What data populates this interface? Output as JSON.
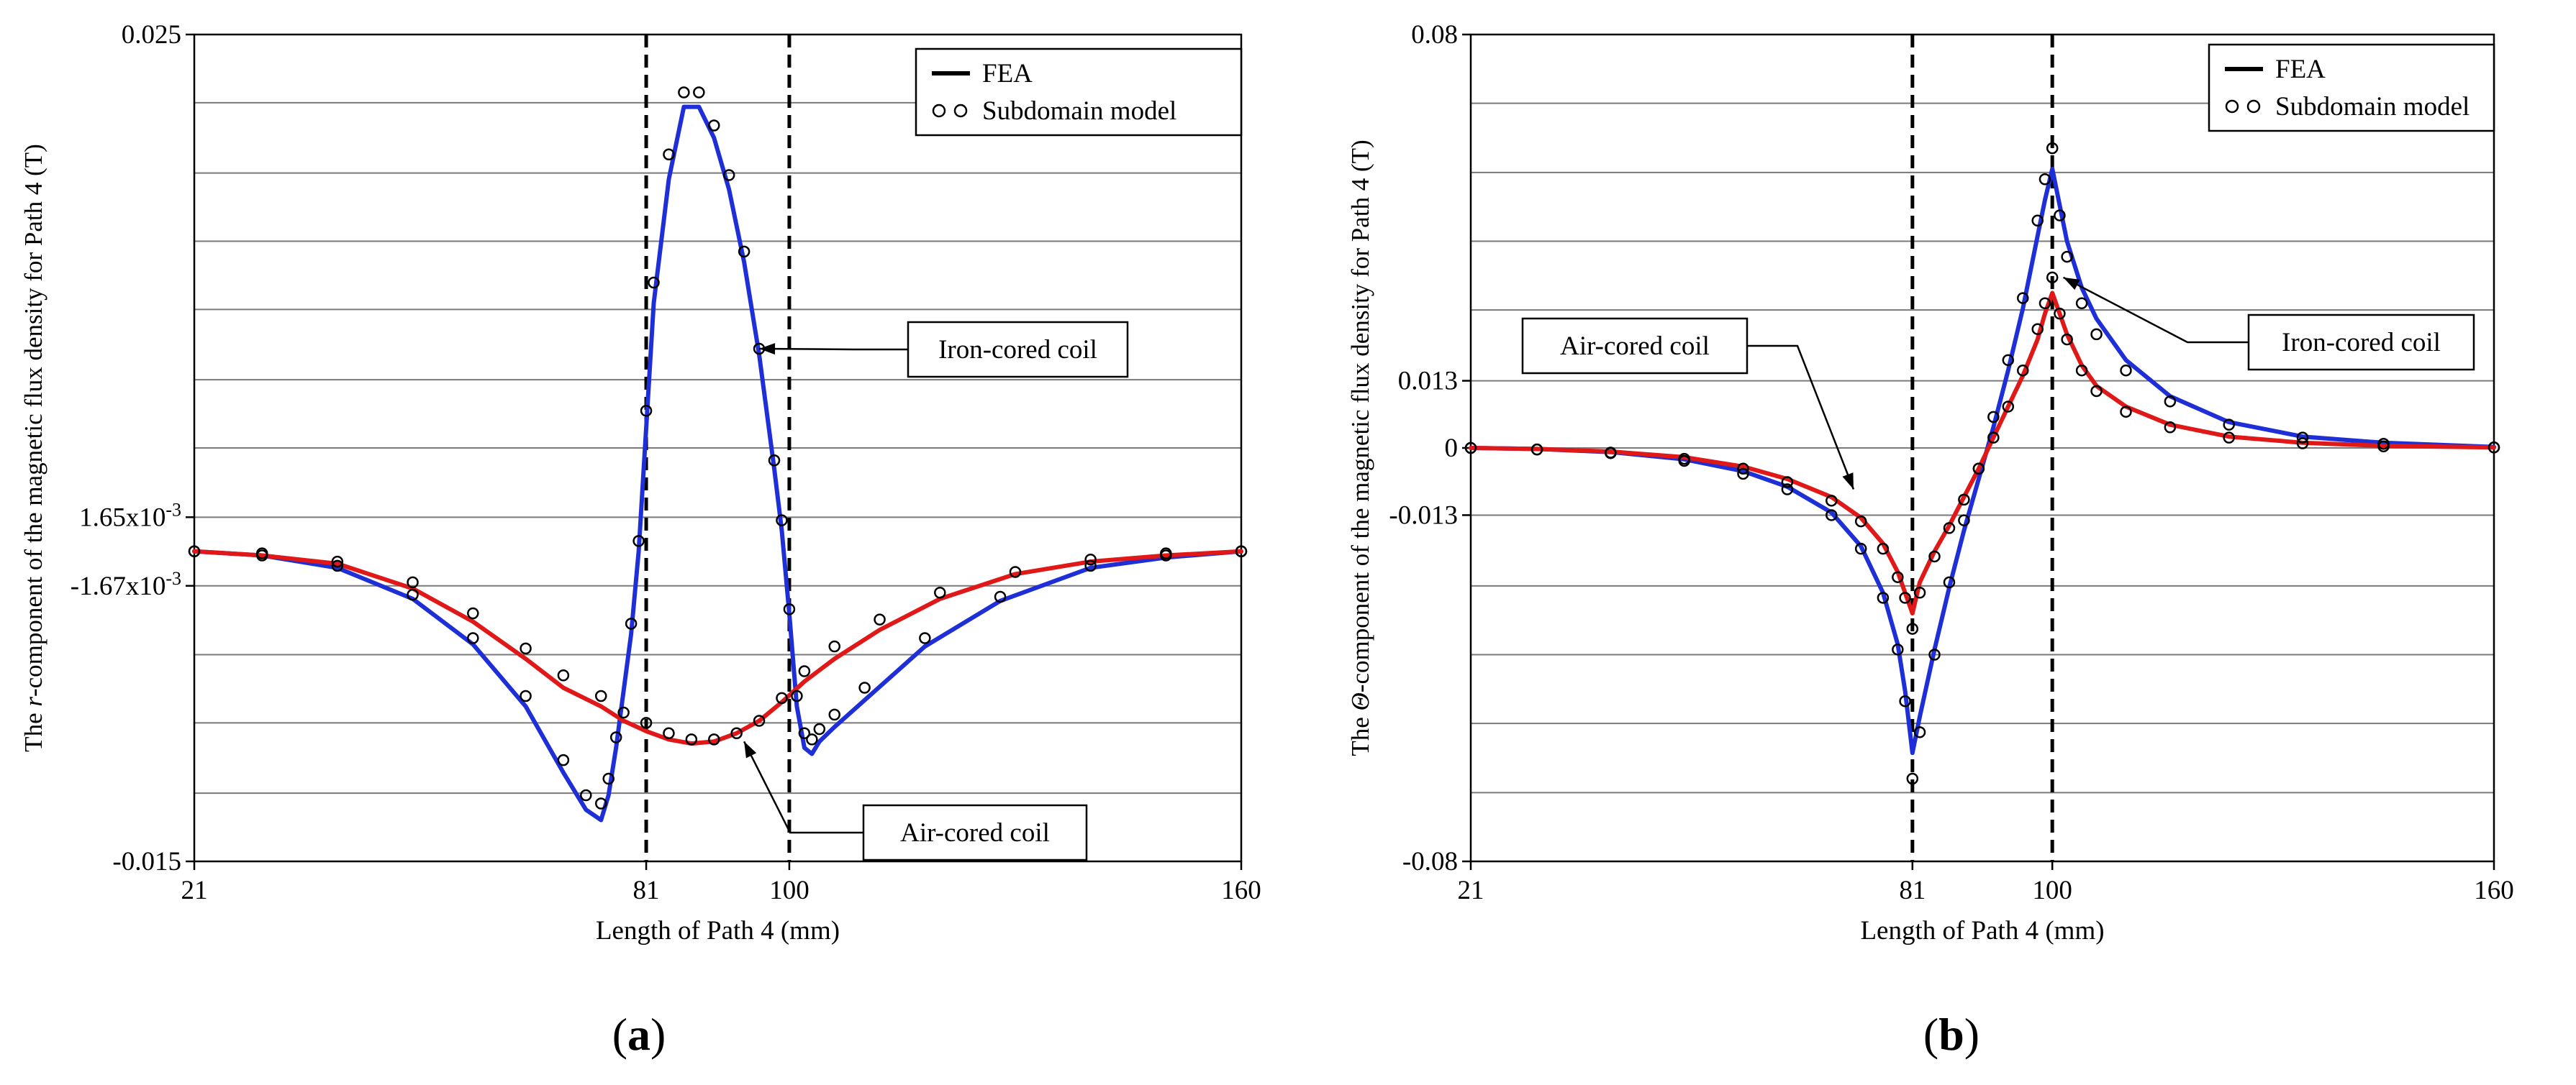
{
  "chart_data": [
    {
      "id": "a",
      "type": "line",
      "panel_label": "a",
      "xlabel": "Length of Path 4 (mm)",
      "ylabel_parts": [
        "The ",
        "r",
        "-component of the magnetic flux density for Path 4 (T)"
      ],
      "xlim": [
        21,
        160
      ],
      "ylim": [
        -0.015,
        0.025
      ],
      "xticks": [
        {
          "value": 21,
          "label": "21"
        },
        {
          "value": 81,
          "label": "81"
        },
        {
          "value": 100,
          "label": "100"
        },
        {
          "value": 160,
          "label": "160"
        }
      ],
      "yticks": [
        {
          "value": 0.025,
          "label": "0.025",
          "sup": ""
        },
        {
          "value": 0.00165,
          "label": "1.65x10",
          "sup": "-3"
        },
        {
          "value": -0.00167,
          "label": "-1.67x10",
          "sup": "-3"
        },
        {
          "value": -0.015,
          "label": "-0.015",
          "sup": ""
        }
      ],
      "gridlines_y": [
        0.0217,
        0.0183,
        0.015,
        0.0117,
        0.0083,
        0.005,
        -0.005,
        -0.0083,
        -0.0117
      ],
      "vlines": [
        81,
        100
      ],
      "legend": {
        "position": "top-right",
        "items": [
          {
            "label": "FEA",
            "style": "line"
          },
          {
            "label": "Subdomain model",
            "style": "circles"
          }
        ]
      },
      "annotations": [
        {
          "text": "Iron-cored coil",
          "target_x": 96,
          "target_y": 0.0098
        },
        {
          "text": "Air-cored coil",
          "target_x": 94,
          "target_y": -0.0092
        }
      ],
      "series": [
        {
          "name": "Iron-cored coil (FEA)",
          "color": "#1f2fd8",
          "x": [
            21,
            30,
            40,
            50,
            58,
            65,
            70,
            73,
            75,
            76,
            77,
            79,
            80,
            81,
            82,
            84,
            86,
            88,
            90,
            92,
            94,
            96,
            98,
            99,
            100,
            101,
            102,
            103,
            104,
            106,
            110,
            118,
            128,
            140,
            150,
            160
          ],
          "y": [
            0,
            -0.0002,
            -0.0008,
            -0.0023,
            -0.0045,
            -0.0075,
            -0.0107,
            -0.0125,
            -0.013,
            -0.0118,
            -0.0095,
            -0.004,
            0,
            0.006,
            0.012,
            0.018,
            0.0215,
            0.0215,
            0.02,
            0.0175,
            0.014,
            0.0095,
            0.004,
            0.001,
            -0.003,
            -0.0075,
            -0.0095,
            -0.0098,
            -0.0092,
            -0.0085,
            -0.0072,
            -0.0046,
            -0.0024,
            -0.0008,
            -0.0003,
            0
          ]
        },
        {
          "name": "Air-cored coil (FEA)",
          "color": "#e01818",
          "x": [
            21,
            30,
            40,
            50,
            58,
            65,
            70,
            75,
            78,
            81,
            84,
            87,
            90,
            93,
            96,
            99,
            102,
            106,
            112,
            120,
            130,
            140,
            150,
            160
          ],
          "y": [
            0,
            -0.0002,
            -0.0006,
            -0.0018,
            -0.0034,
            -0.0052,
            -0.0066,
            -0.0075,
            -0.0082,
            -0.0087,
            -0.0091,
            -0.0093,
            -0.0092,
            -0.0088,
            -0.0082,
            -0.0073,
            -0.0063,
            -0.0052,
            -0.0038,
            -0.0023,
            -0.0011,
            -0.0005,
            -0.0002,
            0
          ]
        },
        {
          "name": "Iron-cored coil (Subdomain model)",
          "color": "#000000",
          "marker": "circle",
          "x": [
            21,
            30,
            40,
            50,
            58,
            65,
            70,
            73,
            75,
            76,
            77,
            79,
            80,
            81,
            82,
            84,
            86,
            88,
            90,
            92,
            94,
            96,
            98,
            99,
            100,
            101,
            102,
            103,
            104,
            106,
            110,
            118,
            128,
            140,
            150,
            160
          ],
          "y": [
            0,
            -0.0002,
            -0.0007,
            -0.0021,
            -0.0042,
            -0.007,
            -0.0101,
            -0.0118,
            -0.0122,
            -0.011,
            -0.009,
            -0.0035,
            0.0005,
            0.0068,
            0.013,
            0.0192,
            0.0222,
            0.0222,
            0.0206,
            0.0182,
            0.0145,
            0.0098,
            0.0044,
            0.0015,
            -0.0028,
            -0.007,
            -0.0088,
            -0.0091,
            -0.0086,
            -0.0079,
            -0.0066,
            -0.0042,
            -0.0022,
            -0.0007,
            -0.0002,
            0
          ]
        },
        {
          "name": "Air-cored coil (Subdomain model)",
          "color": "#000000",
          "marker": "circle",
          "x": [
            21,
            30,
            40,
            50,
            58,
            65,
            70,
            75,
            78,
            81,
            84,
            87,
            90,
            93,
            96,
            99,
            102,
            106,
            112,
            120,
            130,
            140,
            150,
            160
          ],
          "y": [
            0,
            -0.0001,
            -0.0005,
            -0.0015,
            -0.003,
            -0.0047,
            -0.006,
            -0.007,
            -0.0078,
            -0.0083,
            -0.0088,
            -0.0091,
            -0.0091,
            -0.0088,
            -0.0082,
            -0.0071,
            -0.0058,
            -0.0046,
            -0.0033,
            -0.002,
            -0.001,
            -0.0004,
            -0.0001,
            0
          ]
        }
      ]
    },
    {
      "id": "b",
      "type": "line",
      "panel_label": "b",
      "xlabel": "Length of Path 4 (mm)",
      "ylabel_parts": [
        "The ",
        "Θ",
        "-component of the magnetic flux density for Path 4 (T)"
      ],
      "xlim": [
        21,
        160
      ],
      "ylim": [
        -0.08,
        0.08
      ],
      "xticks": [
        {
          "value": 21,
          "label": "21"
        },
        {
          "value": 81,
          "label": "81"
        },
        {
          "value": 100,
          "label": "100"
        },
        {
          "value": 160,
          "label": "160"
        }
      ],
      "yticks": [
        {
          "value": 0.08,
          "label": "0.08",
          "sup": ""
        },
        {
          "value": 0.013,
          "label": "0.013",
          "sup": ""
        },
        {
          "value": 0,
          "label": "0",
          "sup": ""
        },
        {
          "value": -0.013,
          "label": "-0.013",
          "sup": ""
        },
        {
          "value": -0.08,
          "label": "-0.08",
          "sup": ""
        }
      ],
      "gridlines_y": [
        0.0667,
        0.0533,
        0.04,
        0.0267,
        -0.0267,
        -0.04,
        -0.0533,
        -0.0667
      ],
      "vlines": [
        81,
        100
      ],
      "legend": {
        "position": "top-right",
        "items": [
          {
            "label": "FEA",
            "style": "line"
          },
          {
            "label": "Subdomain model",
            "style": "circles"
          }
        ]
      },
      "annotations": [
        {
          "text": "Air-cored coil",
          "target_x": 73,
          "target_y": -0.008
        },
        {
          "text": "Iron-cored coil",
          "target_x": 101.5,
          "target_y": 0.033
        }
      ],
      "series": [
        {
          "name": "Iron-cored coil (FEA)",
          "color": "#1f2fd8",
          "x": [
            21,
            30,
            40,
            50,
            58,
            64,
            70,
            74,
            77,
            79,
            80,
            81,
            82,
            84,
            86,
            88,
            90,
            92,
            94,
            96,
            98,
            99,
            100,
            101,
            102,
            104,
            106,
            110,
            116,
            124,
            134,
            145,
            160
          ],
          "y": [
            0,
            -0.0002,
            -0.0008,
            -0.0022,
            -0.0045,
            -0.0075,
            -0.0125,
            -0.019,
            -0.028,
            -0.038,
            -0.047,
            -0.059,
            -0.052,
            -0.039,
            -0.027,
            -0.016,
            -0.006,
            0.004,
            0.015,
            0.027,
            0.041,
            0.048,
            0.054,
            0.047,
            0.04,
            0.031,
            0.025,
            0.017,
            0.01,
            0.005,
            0.0022,
            0.001,
            0.0002
          ]
        },
        {
          "name": "Air-cored coil (FEA)",
          "color": "#e01818",
          "x": [
            21,
            30,
            40,
            50,
            58,
            64,
            70,
            74,
            77,
            79,
            80,
            81,
            82,
            84,
            86,
            88,
            90,
            92,
            94,
            96,
            98,
            99,
            100,
            101,
            102,
            104,
            106,
            110,
            116,
            124,
            134,
            145,
            160
          ],
          "y": [
            0,
            -0.0002,
            -0.0007,
            -0.0018,
            -0.0036,
            -0.006,
            -0.0095,
            -0.0135,
            -0.0185,
            -0.024,
            -0.028,
            -0.032,
            -0.026,
            -0.02,
            -0.015,
            -0.0095,
            -0.004,
            0.002,
            0.008,
            0.014,
            0.021,
            0.026,
            0.03,
            0.026,
            0.022,
            0.016,
            0.012,
            0.008,
            0.0045,
            0.0022,
            0.001,
            0.0004,
            0.0001
          ]
        },
        {
          "name": "Iron-cored coil (Subdomain model)",
          "color": "#000000",
          "marker": "circle",
          "x": [
            21,
            30,
            40,
            50,
            58,
            64,
            70,
            74,
            77,
            79,
            80,
            81,
            82,
            84,
            86,
            88,
            90,
            92,
            94,
            96,
            98,
            99,
            100,
            101,
            102,
            104,
            106,
            110,
            116,
            124,
            134,
            145,
            160
          ],
          "y": [
            0,
            -0.0003,
            -0.001,
            -0.0025,
            -0.005,
            -0.008,
            -0.013,
            -0.0195,
            -0.029,
            -0.039,
            -0.049,
            -0.064,
            -0.055,
            -0.04,
            -0.026,
            -0.014,
            -0.004,
            0.006,
            0.017,
            0.029,
            0.044,
            0.052,
            0.058,
            0.045,
            0.037,
            0.028,
            0.022,
            0.015,
            0.009,
            0.0045,
            0.002,
            0.0008,
            0.0001
          ]
        },
        {
          "name": "Air-cored coil (Subdomain model)",
          "color": "#000000",
          "marker": "circle",
          "x": [
            21,
            30,
            40,
            50,
            58,
            64,
            70,
            74,
            77,
            79,
            80,
            81,
            82,
            84,
            86,
            88,
            90,
            92,
            94,
            96,
            98,
            99,
            100,
            101,
            102,
            104,
            106,
            110,
            116,
            124,
            134,
            145,
            160
          ],
          "y": [
            0,
            -0.0003,
            -0.0009,
            -0.0021,
            -0.004,
            -0.0066,
            -0.0102,
            -0.0142,
            -0.0195,
            -0.025,
            -0.029,
            -0.035,
            -0.028,
            -0.021,
            -0.0155,
            -0.01,
            -0.004,
            0.002,
            0.008,
            0.015,
            0.023,
            0.028,
            0.033,
            0.026,
            0.021,
            0.015,
            0.011,
            0.007,
            0.004,
            0.002,
            0.0009,
            0.0003,
            0.0001
          ]
        }
      ]
    }
  ]
}
